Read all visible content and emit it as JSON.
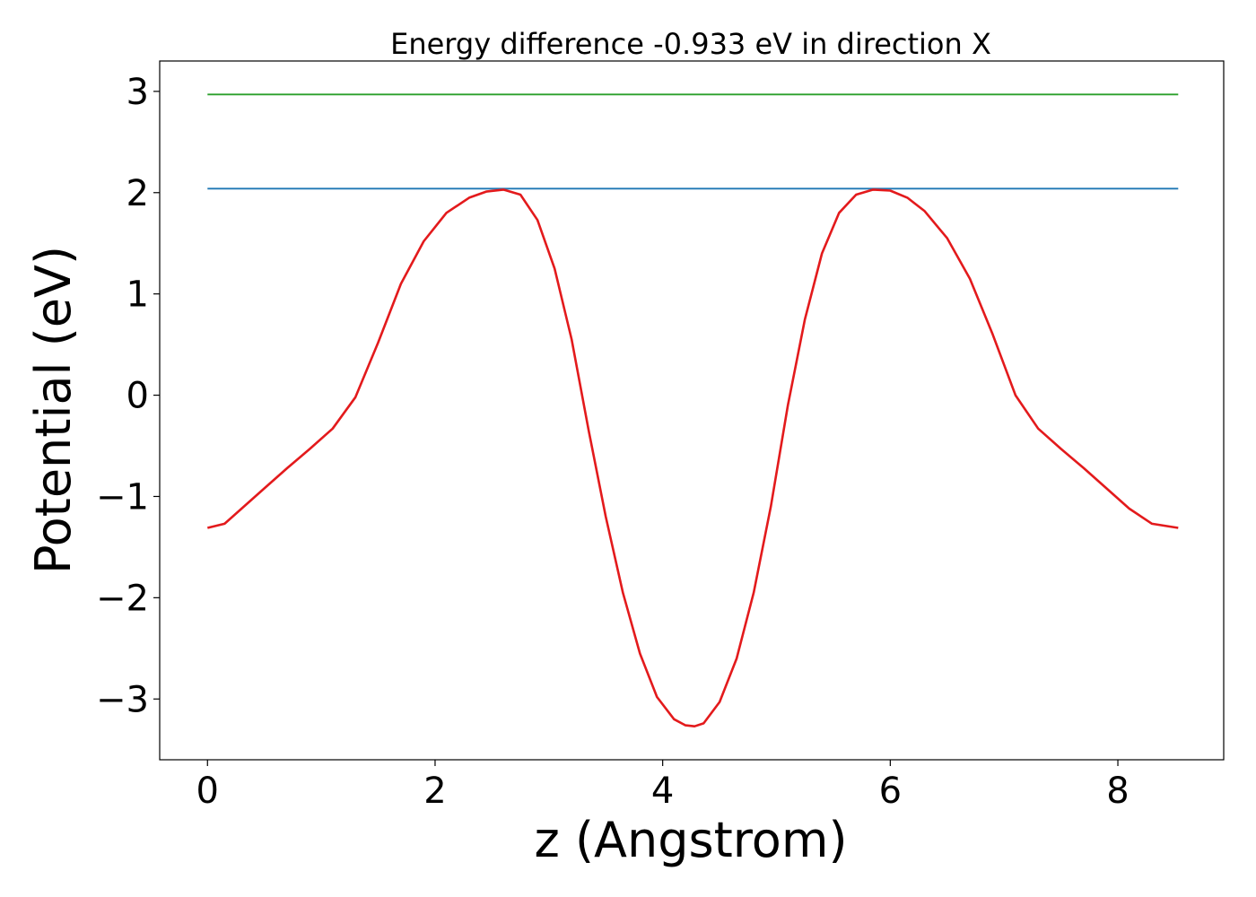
{
  "chart_data": {
    "type": "line",
    "title": "Energy difference -0.933 eV in direction X",
    "xlabel": "z (Angstrom)",
    "ylabel": "Potential (eV)",
    "xlim": [
      -0.42,
      8.93
    ],
    "ylim": [
      -3.6,
      3.3
    ],
    "xticks": [
      0,
      2,
      4,
      6,
      8
    ],
    "xtick_labels": [
      "0",
      "2",
      "4",
      "6",
      "8"
    ],
    "yticks": [
      -3,
      -2,
      -1,
      0,
      1,
      2,
      3
    ],
    "ytick_labels": [
      "−3",
      "−2",
      "−1",
      "0",
      "1",
      "2",
      "3"
    ],
    "grid": false,
    "series": [
      {
        "color": "#2ca02c",
        "x": [
          0,
          8.53
        ],
        "y": [
          2.97,
          2.97
        ]
      },
      {
        "color": "#1f77b4",
        "x": [
          0,
          8.53
        ],
        "y": [
          2.04,
          2.04
        ]
      },
      {
        "color": "#e31a1c",
        "x": [
          0,
          0.15,
          0.3,
          0.5,
          0.7,
          0.9,
          1.1,
          1.3,
          1.5,
          1.7,
          1.9,
          2.1,
          2.3,
          2.45,
          2.6,
          2.75,
          2.9,
          3.05,
          3.2,
          3.35,
          3.5,
          3.65,
          3.8,
          3.95,
          4.1,
          4.2,
          4.28,
          4.36,
          4.5,
          4.65,
          4.8,
          4.95,
          5.1,
          5.25,
          5.4,
          5.55,
          5.7,
          5.85,
          6.0,
          6.15,
          6.3,
          6.5,
          6.7,
          6.9,
          7.1,
          7.3,
          7.5,
          7.7,
          7.9,
          8.1,
          8.3,
          8.53
        ],
        "y": [
          -1.31,
          -1.27,
          -1.12,
          -0.92,
          -0.72,
          -0.53,
          -0.33,
          -0.02,
          0.52,
          1.1,
          1.52,
          1.8,
          1.95,
          2.01,
          2.03,
          1.98,
          1.73,
          1.25,
          0.55,
          -0.35,
          -1.2,
          -1.95,
          -2.55,
          -2.98,
          -3.2,
          -3.26,
          -3.27,
          -3.24,
          -3.03,
          -2.6,
          -1.95,
          -1.1,
          -0.1,
          0.75,
          1.4,
          1.8,
          1.98,
          2.03,
          2.02,
          1.95,
          1.82,
          1.55,
          1.15,
          0.6,
          0.0,
          -0.33,
          -0.53,
          -0.72,
          -0.92,
          -1.12,
          -1.27,
          -1.31
        ]
      }
    ]
  }
}
